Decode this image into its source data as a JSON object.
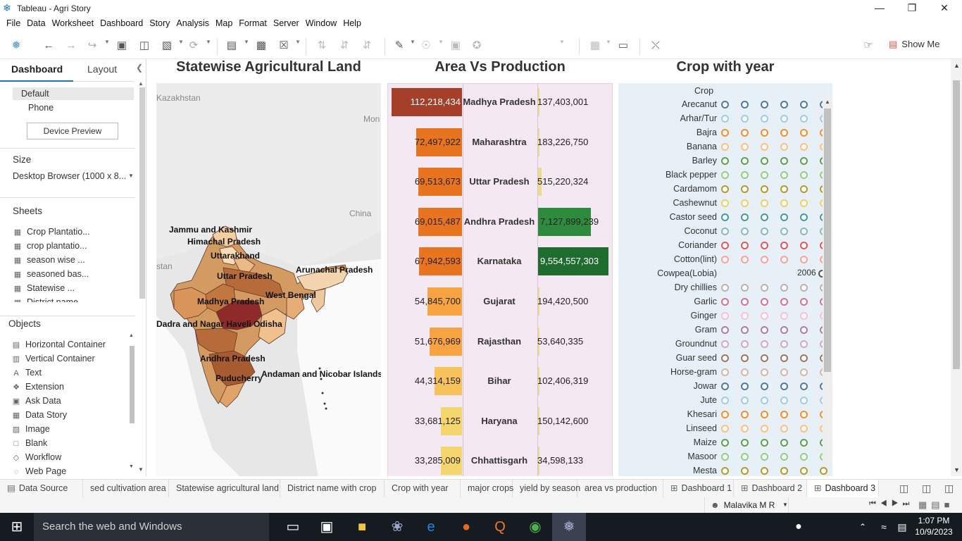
{
  "window": {
    "title": "Tableau - Agri Story",
    "min": "—",
    "max": "❐",
    "close": "✕"
  },
  "menu": [
    "File",
    "Data",
    "Worksheet",
    "Dashboard",
    "Story",
    "Analysis",
    "Map",
    "Format",
    "Server",
    "Window",
    "Help"
  ],
  "toolbar": {
    "show_me": "Show Me"
  },
  "left": {
    "tab_dashboard": "Dashboard",
    "tab_layout": "Layout",
    "collapse": "❮",
    "devices": [
      "Default",
      "Phone"
    ],
    "device_preview": "Device Preview",
    "size_header": "Size",
    "size_value": "Desktop Browser (1000 x 8...",
    "sheets_header": "Sheets",
    "sheets": [
      "Crop Plantatio...",
      "crop plantatio...",
      "season wise ...",
      "seasoned bas...",
      "Statewise ...",
      "District name ..."
    ],
    "objects_header": "Objects",
    "objects": [
      {
        "label": "Horizontal Container",
        "icon": "▤"
      },
      {
        "label": "Vertical Container",
        "icon": "▥"
      },
      {
        "label": "Text",
        "icon": "A"
      },
      {
        "label": "Extension",
        "icon": "❖"
      },
      {
        "label": "Ask Data",
        "icon": "▣"
      },
      {
        "label": "Data Story",
        "icon": "▦"
      },
      {
        "label": "Image",
        "icon": "▨"
      },
      {
        "label": "Blank",
        "icon": "□"
      },
      {
        "label": "Workflow",
        "icon": "◇"
      },
      {
        "label": "Web Page",
        "icon": "◌"
      }
    ]
  },
  "dashboard": {
    "map_title": "Statewise Agricultural Land",
    "avp_title": "Area Vs Production",
    "cwy_title": "Crop with year",
    "map_bg_labels": [
      "Kazakhstan",
      "Mon",
      "China",
      "stan"
    ],
    "map_labels": [
      "Jammu and Kashmir",
      "Himachal Pradesh",
      "Uttarakhand",
      "Uttar Pradesh",
      "Arunachal Pradesh",
      "West Bengal",
      "Madhya Pradesh",
      "Odisha",
      "Dadra and Nagar Haveli",
      "Andhra Pradesh",
      "Andaman and Nicobar Islands",
      "Puducherry"
    ],
    "cwy_header": "Crop",
    "cwy_tooltip": "2006",
    "crops": [
      "Arecanut",
      "Arhar/Tur",
      "Bajra",
      "Banana",
      "Barley",
      "Black pepper",
      "Cardamom",
      "Cashewnut",
      "Castor seed",
      "Coconut",
      "Coriander",
      "Cotton(lint)",
      "Cowpea(Lobia)",
      "Dry chillies",
      "Garlic",
      "Ginger",
      "Gram",
      "Groundnut",
      "Guar seed",
      "Horse-gram",
      "Jowar",
      "Jute",
      "Khesari",
      "Linseed",
      "Maize",
      "Masoor",
      "Mesta"
    ],
    "crop_colors": [
      "#4e79a7",
      "#a0cbe8",
      "#f28e2b",
      "#ffbe7d",
      "#59a14f",
      "#8cd17d",
      "#b6992d",
      "#f1ce63",
      "#499894",
      "#86bcb6",
      "#e15759",
      "#ff9d9a",
      "#79706e",
      "#bab0ac",
      "#d37295",
      "#fabfd2",
      "#b07aa1",
      "#d4a6c8",
      "#9d7660",
      "#d7b5a6",
      "#4e79a7",
      "#a0cbe8",
      "#f28e2b",
      "#ffbe7d",
      "#59a14f",
      "#8cd17d",
      "#b6992d"
    ]
  },
  "chart_data": {
    "type": "bar",
    "categories": [
      "Madhya Pradesh",
      "Maharashtra",
      "Uttar Pradesh",
      "Andhra Pradesh",
      "Karnataka",
      "Gujarat",
      "Rajasthan",
      "Bihar",
      "Haryana",
      "Chhattisgarh"
    ],
    "series": [
      {
        "name": "Area",
        "values": [
          112218434,
          72497922,
          69513673,
          69015487,
          67942593,
          54845700,
          51676969,
          44314159,
          33681125,
          33285009
        ],
        "labels": [
          "112,218,434",
          "72,497,922",
          "69,513,673",
          "69,015,487",
          "67,942,593",
          "54,845,700",
          "51,676,969",
          "44,314,159",
          "33,681,125",
          "33,285,009"
        ],
        "colors": [
          "#a63f2a",
          "#e8741f",
          "#e8741f",
          "#e8741f",
          "#e8741f",
          "#f7a342",
          "#f7a342",
          "#f8c25b",
          "#f5d56e",
          "#f5d56e"
        ]
      },
      {
        "name": "Production",
        "values": [
          137403001,
          183226750,
          515220324,
          7127899239,
          9554557303,
          194420500,
          53640335,
          102406319,
          150142600,
          34598133
        ],
        "labels": [
          "137,403,001",
          "183,226,750",
          "515,220,324",
          "7,127,899,239",
          "9,554,557,303",
          "194,420,500",
          "53,640,335",
          "102,406,319",
          "150,142,600",
          "34,598,133"
        ],
        "colors": [
          "#f0d98a",
          "#f0d98a",
          "#f0d98a",
          "#2e8b3e",
          "#1e6d2e",
          "#f0d98a",
          "#f0d98a",
          "#f0d98a",
          "#f0d98a",
          "#f0d98a"
        ]
      }
    ]
  },
  "sheet_tabs": [
    {
      "label": "Data Source",
      "icon": "▤",
      "active": false
    },
    {
      "label": "sed cultivation area",
      "active": false
    },
    {
      "label": "Statewise agricultural land",
      "active": false
    },
    {
      "label": "District name with crop",
      "active": false
    },
    {
      "label": "Crop with year",
      "active": false
    },
    {
      "label": "major crops",
      "active": false
    },
    {
      "label": "yield by season",
      "active": false
    },
    {
      "label": "area vs production",
      "active": false
    },
    {
      "label": "Dashboard 1",
      "icon": "⊞",
      "active": false
    },
    {
      "label": "Dashboard 2",
      "icon": "⊞",
      "active": false
    },
    {
      "label": "Dashboard 3",
      "icon": "⊞",
      "active": true
    }
  ],
  "status": {
    "user": "Malavika  M R"
  },
  "taskbar": {
    "search_placeholder": "Search the web and Windows",
    "time": "1:07 PM",
    "date": "10/9/2023"
  }
}
